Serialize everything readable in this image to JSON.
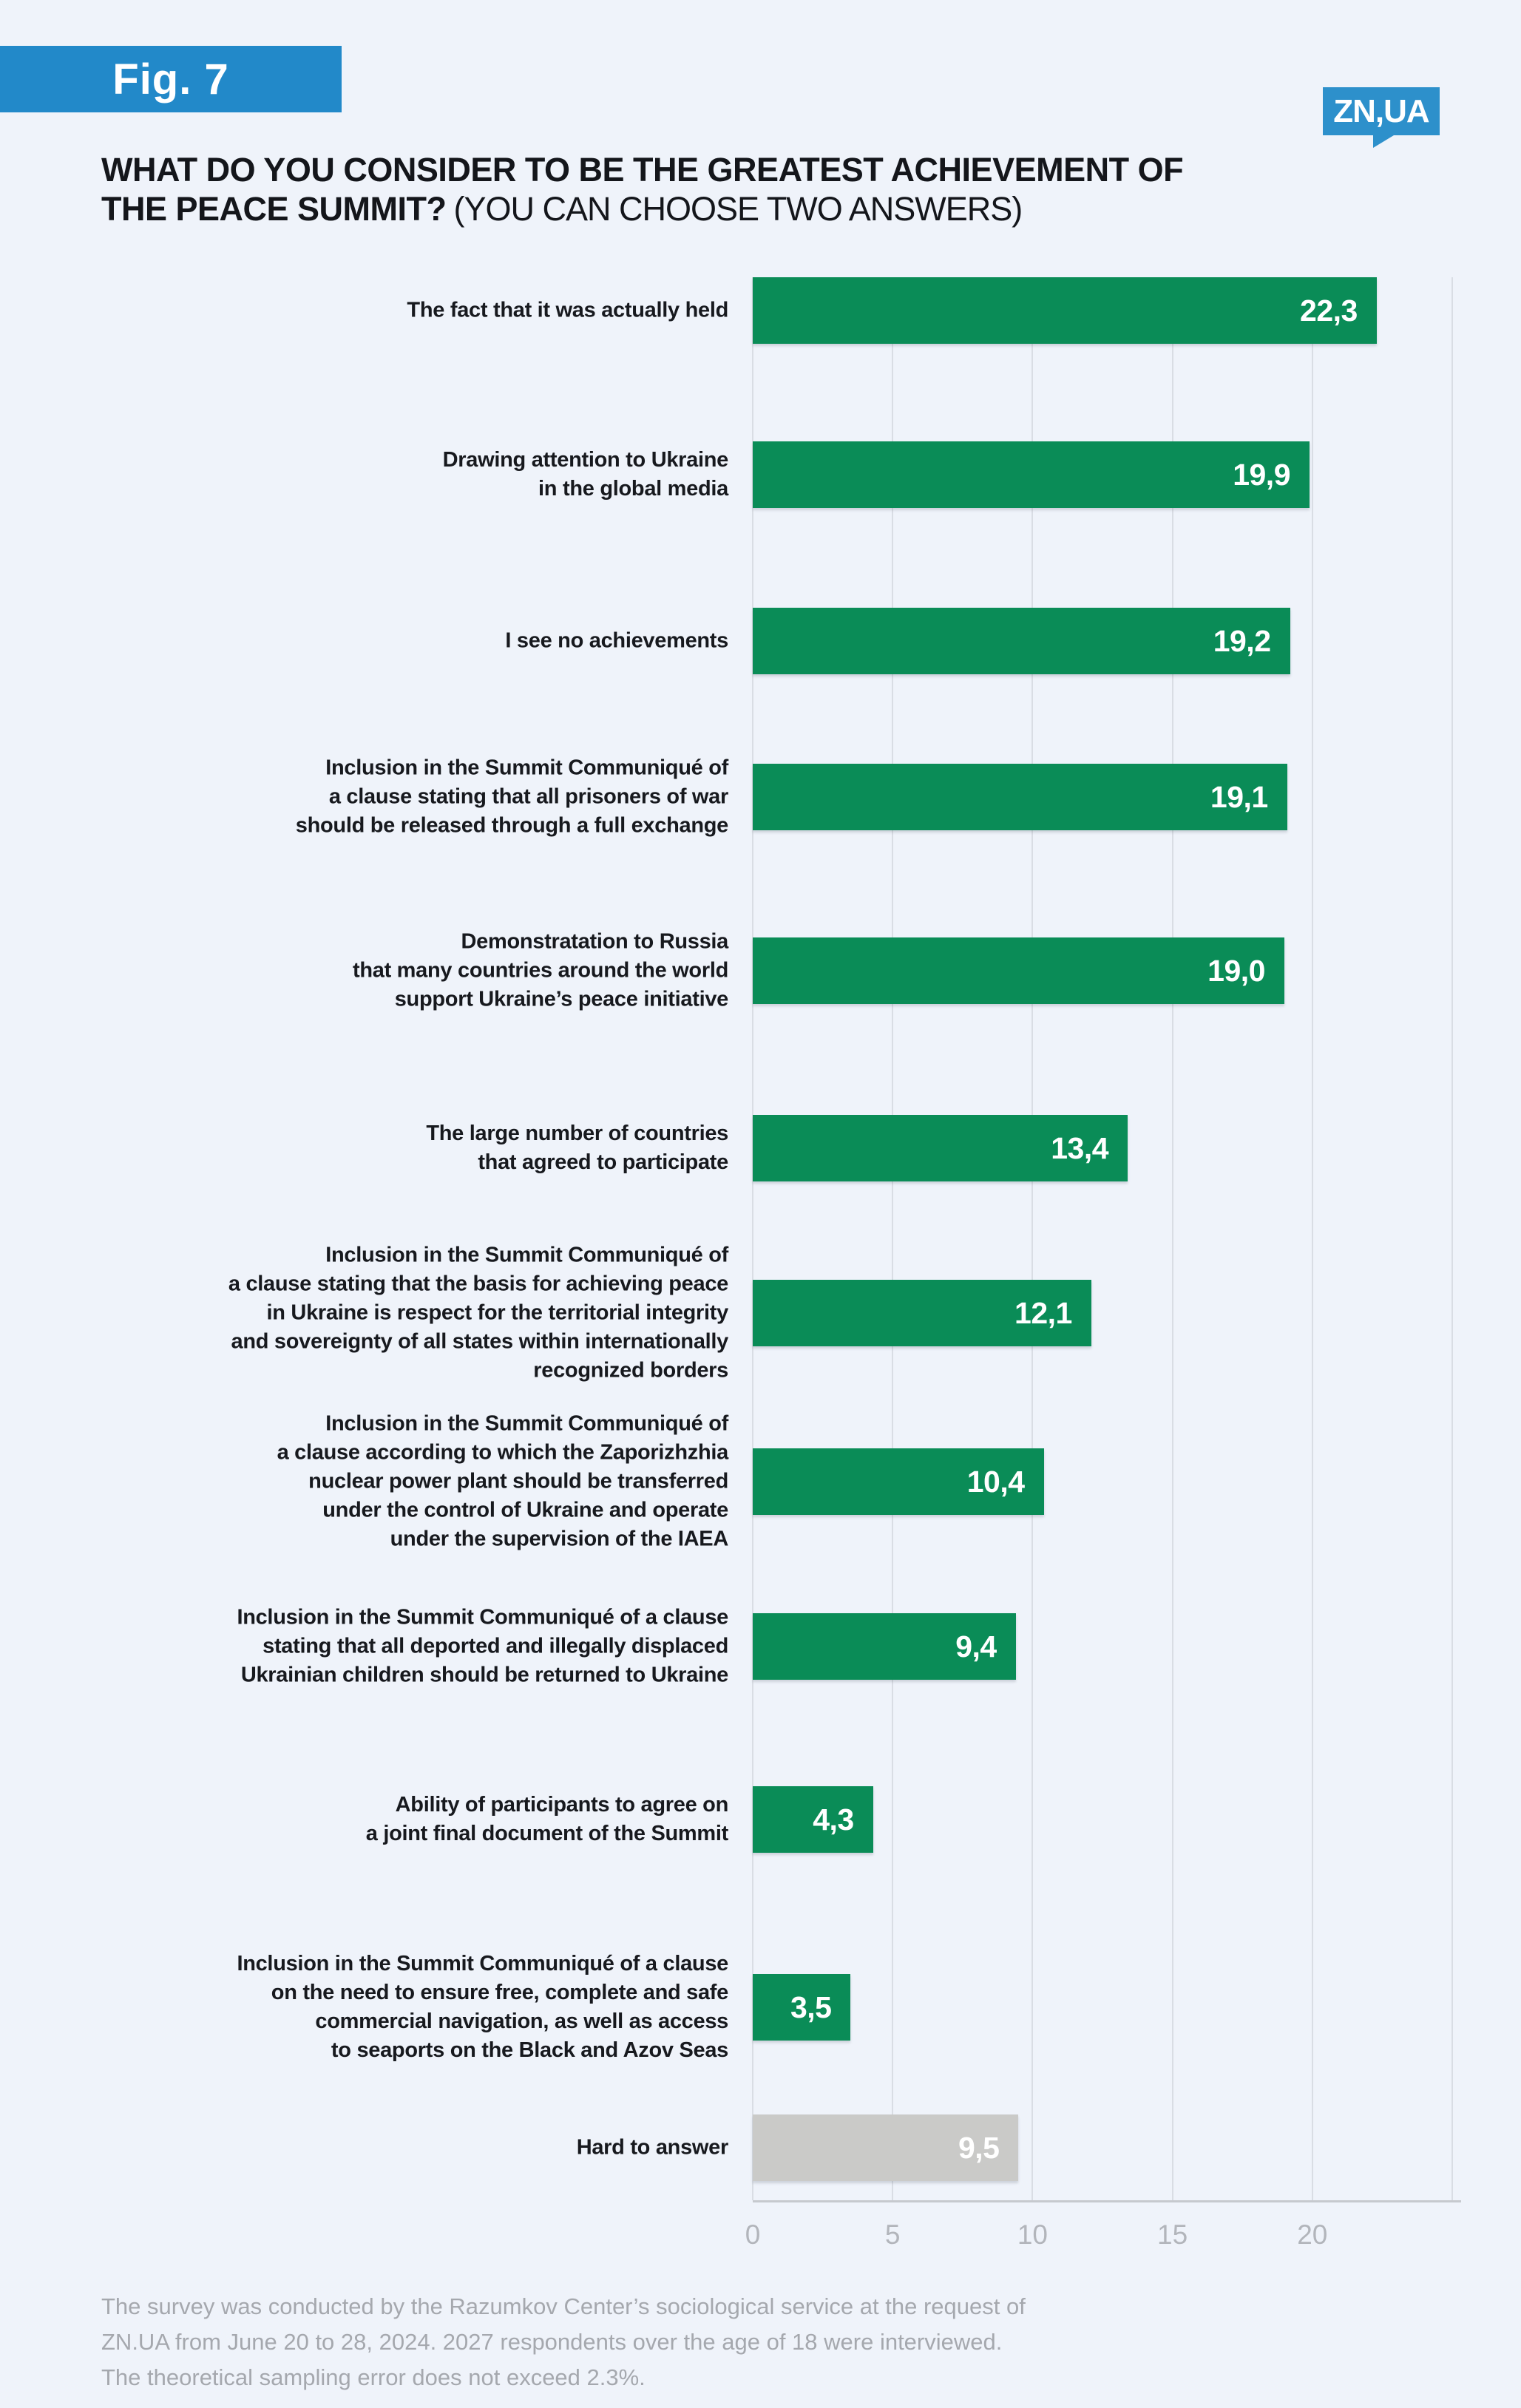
{
  "figure": {
    "badge": "Fig. 7",
    "logo": "ZN,UA"
  },
  "title": {
    "line1": "WHAT DO YOU CONSIDER TO BE THE GREATEST ACHIEVEMENT OF",
    "line2_bold": "THE PEACE SUMMIT?",
    "line2_rest": "(YOU CAN CHOOSE TWO ANSWERS)"
  },
  "chart_data": {
    "type": "bar",
    "orientation": "horizontal",
    "title": "What do you consider to be the greatest achievement of the Peace Summit? (You can choose two answers)",
    "xlabel": "",
    "ylabel": "",
    "xlim": [
      0,
      25.3
    ],
    "xticks": [
      0,
      5,
      10,
      15,
      20
    ],
    "xgrid": [
      0,
      5,
      10,
      15,
      20,
      25
    ],
    "grid": true,
    "bar_color": "#0a8c57",
    "muted_bar_color": "#cacac8",
    "value_decimal_separator": ",",
    "items": [
      {
        "label_lines": [
          "The fact that it was actually held"
        ],
        "value": 22.3,
        "muted": false
      },
      {
        "label_lines": [
          "Drawing attention to Ukraine",
          "in the global media"
        ],
        "value": 19.9,
        "muted": false
      },
      {
        "label_lines": [
          "I see no achievements"
        ],
        "value": 19.2,
        "muted": false
      },
      {
        "label_lines": [
          "Inclusion in the Summit Communiqué of",
          "a clause stating that all prisoners of war",
          "should be released through a full exchange"
        ],
        "value": 19.1,
        "muted": false
      },
      {
        "label_lines": [
          "Demonstratation to Russia",
          "that many countries around the world",
          "support Ukraine’s peace initiative"
        ],
        "value": 19.0,
        "muted": false
      },
      {
        "label_lines": [
          "The large number of countries",
          "that agreed to participate"
        ],
        "value": 13.4,
        "muted": false
      },
      {
        "label_lines": [
          "Inclusion in the Summit Communiqué of",
          "a clause stating that the basis for achieving peace",
          "in Ukraine is respect for the territorial integrity",
          "and sovereignty of all states within internationally",
          "recognized borders"
        ],
        "value": 12.1,
        "muted": false
      },
      {
        "label_lines": [
          "Inclusion in the Summit Communiqué of",
          "a clause according to which the Zaporizhzhia",
          "nuclear power plant should be transferred",
          "under the control of Ukraine and operate",
          "under the supervision of the IAEA"
        ],
        "value": 10.4,
        "muted": false
      },
      {
        "label_lines": [
          "Inclusion in the Summit Communiqué of a clause",
          "stating that all deported and illegally displaced",
          "Ukrainian children should be returned to Ukraine"
        ],
        "value": 9.4,
        "muted": false
      },
      {
        "label_lines": [
          "Ability of participants to agree on",
          "a joint final document of the Summit"
        ],
        "value": 4.3,
        "muted": false
      },
      {
        "label_lines": [
          "Inclusion in the Summit Communiqué of a clause",
          "on the need to ensure free, complete and safe",
          "commercial navigation, as well as access",
          "to seaports on the Black and Azov Seas"
        ],
        "value": 3.5,
        "muted": false
      },
      {
        "label_lines": [
          "Hard to answer"
        ],
        "value": 9.5,
        "muted": true
      }
    ]
  },
  "footer": {
    "lines": [
      "The survey was conducted by the Razumkov Center’s sociological service at the request of",
      "ZN.UA from June 20 to 28, 2024. 2027 respondents over the age of 18 were interviewed.",
      "The theoretical sampling error does not exceed 2.3%."
    ]
  }
}
